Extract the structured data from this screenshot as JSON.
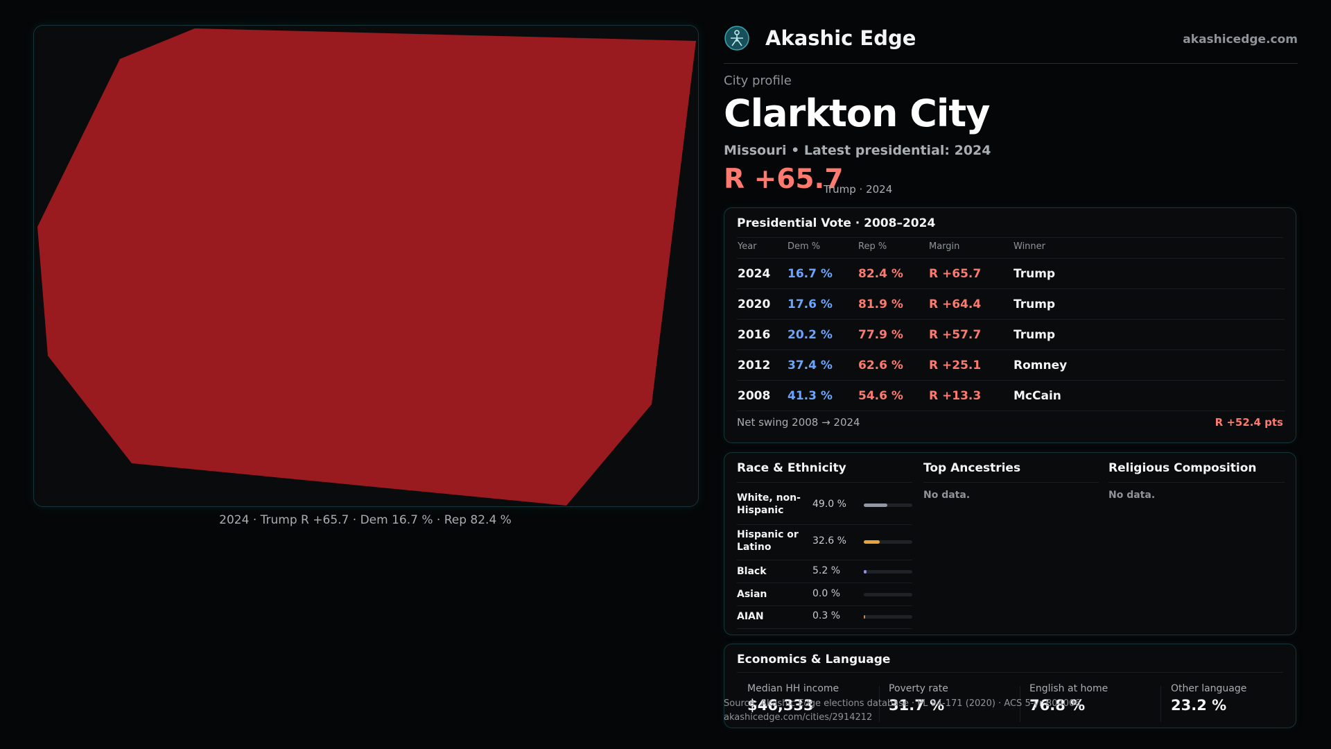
{
  "brand": {
    "name": "Akashic Edge",
    "url": "akashicedge.com"
  },
  "map": {
    "fill_color": "#9a1b1f",
    "caption": "2024 · Trump R +65.7 · Dem 16.7 % · Rep 82.4 %"
  },
  "profile": {
    "kicker": "City profile",
    "city": "Clarkton City",
    "subtitle": "Missouri • Latest presidential: 2024",
    "margin": "R +65.7",
    "margin_note": "Trump · 2024"
  },
  "presidential": {
    "title": "Presidential Vote · 2008–2024",
    "headers": [
      "Year",
      "Dem %",
      "Rep %",
      "Margin",
      "Winner"
    ],
    "rows": [
      {
        "year": "2024",
        "dem": "16.7 %",
        "rep": "82.4 %",
        "margin": "R +65.7",
        "winner": "Trump"
      },
      {
        "year": "2020",
        "dem": "17.6 %",
        "rep": "81.9 %",
        "margin": "R +64.4",
        "winner": "Trump"
      },
      {
        "year": "2016",
        "dem": "20.2 %",
        "rep": "77.9 %",
        "margin": "R +57.7",
        "winner": "Trump"
      },
      {
        "year": "2012",
        "dem": "37.4 %",
        "rep": "62.6 %",
        "margin": "R +25.1",
        "winner": "Romney"
      },
      {
        "year": "2008",
        "dem": "41.3 %",
        "rep": "54.6 %",
        "margin": "R +13.3",
        "winner": "McCain"
      }
    ],
    "swing_label": "Net swing 2008 → 2024",
    "swing_value": "R +52.4 pts"
  },
  "demographics": {
    "race": {
      "title": "Race & Ethnicity",
      "rows": [
        {
          "label": "White, non-Hispanic",
          "pct": "49.0 %",
          "share": 0.49,
          "color": "#8f98a3"
        },
        {
          "label": "Hispanic or Latino",
          "pct": "32.6 %",
          "share": 0.326,
          "color": "#e8a33a"
        },
        {
          "label": "Black",
          "pct": "5.2 %",
          "share": 0.052,
          "color": "#8e8fe6"
        },
        {
          "label": "Asian",
          "pct": "0.0 %",
          "share": 0.0,
          "color": "#5fc2c8"
        },
        {
          "label": "AIAN",
          "pct": "0.3 %",
          "share": 0.003,
          "color": "#c58a5a"
        }
      ]
    },
    "ancestries": {
      "title": "Top Ancestries",
      "empty": "No data."
    },
    "religion": {
      "title": "Religious Composition",
      "empty": "No data."
    }
  },
  "economics": {
    "title": "Economics & Language",
    "items": [
      {
        "label": "Median HH income",
        "value": "$46,333"
      },
      {
        "label": "Poverty rate",
        "value": "31.7 %"
      },
      {
        "label": "English at home",
        "value": "76.8 %"
      },
      {
        "label": "Other language",
        "value": "23.2 %"
      }
    ]
  },
  "footer": {
    "source": "Source: Akashic Edge elections database · PL 94-171 (2020) · ACS 5-yr B04006",
    "link": "akashicedge.com/cities/2914212"
  }
}
